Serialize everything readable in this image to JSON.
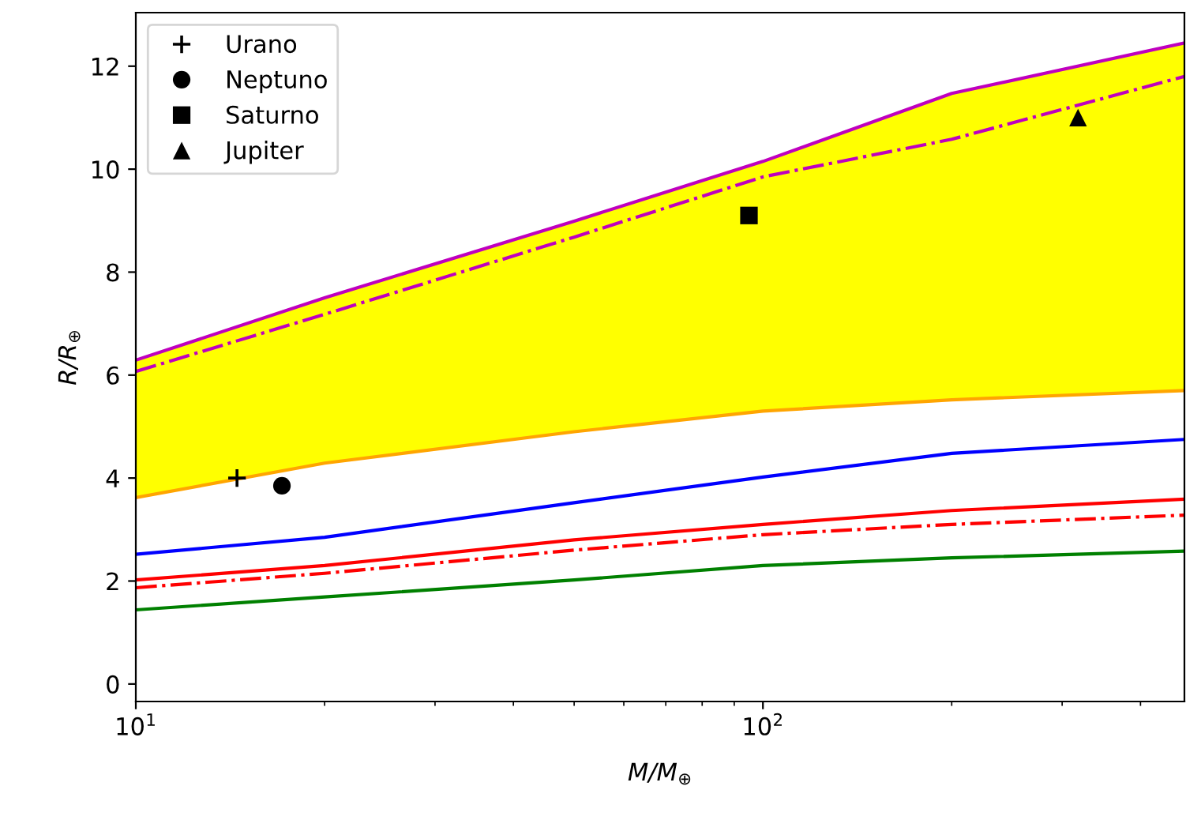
{
  "chart_data": {
    "type": "line",
    "xlabel": "M/M$_{⊕}$",
    "ylabel": "R/R$_{⊕}$",
    "log": "x",
    "xlim": [
      10,
      470
    ],
    "xticks": [
      {
        "value": 10,
        "label": "10$^{1}$"
      },
      {
        "value": 100,
        "label": "10$^{2}$"
      }
    ],
    "ylim": [
      -0.34,
      13.04
    ],
    "yticks": [
      0,
      2,
      4,
      6,
      8,
      10,
      12
    ],
    "grid": false,
    "legend": "top left",
    "series": [
      {
        "color": "#bf00bf",
        "x": [
          10,
          20,
          50,
          100,
          200,
          470
        ],
        "values": [
          6.29,
          7.5,
          8.99,
          10.15,
          11.47,
          12.45
        ],
        "line_style": "solid"
      },
      {
        "color": "#bf00bf",
        "x": [
          10,
          20,
          50,
          100,
          200,
          470
        ],
        "values": [
          6.07,
          7.18,
          8.68,
          9.85,
          10.58,
          11.8
        ],
        "line_style": "dashdot",
        "lower": [
          3.62,
          4.29,
          4.9,
          5.3,
          5.52,
          5.7
        ],
        "upper": [
          6.29,
          7.5,
          8.99,
          10.15,
          11.47,
          12.45
        ]
      },
      {
        "color": "#ffa500",
        "x": [
          10,
          20,
          50,
          100,
          200,
          470
        ],
        "values": [
          3.62,
          4.29,
          4.9,
          5.3,
          5.52,
          5.7
        ],
        "line_style": "solid"
      },
      {
        "color": "#0000ff",
        "x": [
          10,
          20,
          50,
          100,
          200,
          470
        ],
        "values": [
          2.52,
          2.85,
          3.52,
          4.02,
          4.48,
          4.75
        ],
        "line_style": "solid"
      },
      {
        "color": "#ff0000",
        "x": [
          10,
          20,
          50,
          100,
          200,
          470
        ],
        "values": [
          2.02,
          2.3,
          2.8,
          3.1,
          3.37,
          3.59
        ],
        "line_style": "solid"
      },
      {
        "color": "#ff0000",
        "x": [
          10,
          20,
          50,
          100,
          200,
          470
        ],
        "values": [
          1.87,
          2.15,
          2.6,
          2.9,
          3.1,
          3.28
        ],
        "line_style": "dashdot"
      },
      {
        "color": "#008000",
        "x": [
          10,
          20,
          50,
          100,
          200,
          470
        ],
        "values": [
          1.44,
          1.69,
          2.02,
          2.3,
          2.45,
          2.58
        ],
        "line_style": "solid"
      },
      {
        "type": "scatter",
        "name": "Urano",
        "color": "#000000",
        "marker": "cross",
        "x": [
          14.5
        ],
        "values": [
          4.0
        ]
      },
      {
        "type": "scatter",
        "name": "Neptuno",
        "color": "#000000",
        "marker": "circle",
        "x": [
          17.1
        ],
        "values": [
          3.85
        ]
      },
      {
        "type": "scatter",
        "name": "Saturno",
        "color": "#000000",
        "marker": "square",
        "x": [
          95
        ],
        "values": [
          9.1
        ]
      },
      {
        "type": "scatter",
        "name": "Jupiter",
        "color": "#000000",
        "marker": "triangle",
        "x": [
          318
        ],
        "values": [
          11.0
        ]
      }
    ]
  }
}
